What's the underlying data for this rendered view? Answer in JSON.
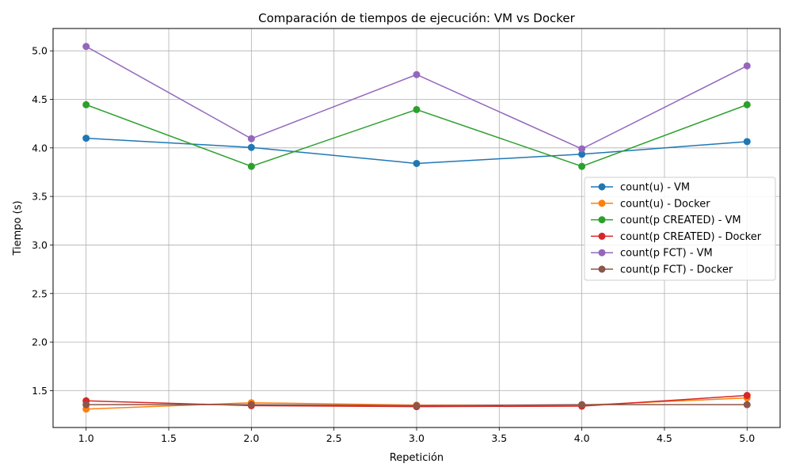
{
  "chart_data": {
    "type": "line",
    "title": "Comparación de tiempos de ejecución: VM vs Docker",
    "xlabel": "Repetición",
    "ylabel": "Tiempo (s)",
    "xlim": [
      0.8,
      5.2
    ],
    "ylim": [
      1.12,
      5.23
    ],
    "xticks": [
      "1.0",
      "1.5",
      "2.0",
      "2.5",
      "3.0",
      "3.5",
      "4.0",
      "4.5",
      "5.0"
    ],
    "yticks": [
      "1.5",
      "2.0",
      "2.5",
      "3.0",
      "3.5",
      "4.0",
      "4.5",
      "5.0"
    ],
    "grid": true,
    "legend_position": "center-right",
    "x": [
      1,
      2,
      3,
      4,
      5
    ],
    "series": [
      {
        "name": "count(u) - VM",
        "color": "#1f77b4",
        "values": [
          4.1,
          4.005,
          3.84,
          3.935,
          4.065
        ]
      },
      {
        "name": "count(u) - Docker",
        "color": "#ff7f0e",
        "values": [
          1.31,
          1.375,
          1.35,
          1.35,
          1.425
        ]
      },
      {
        "name": "count(p CREATED) - VM",
        "color": "#2ca02c",
        "values": [
          4.445,
          3.81,
          4.395,
          3.81,
          4.445
        ]
      },
      {
        "name": "count(p CREATED) - Docker",
        "color": "#d62728",
        "values": [
          1.395,
          1.345,
          1.335,
          1.34,
          1.45
        ]
      },
      {
        "name": "count(p FCT) - VM",
        "color": "#9467bd",
        "values": [
          5.045,
          4.095,
          4.755,
          3.99,
          4.845
        ]
      },
      {
        "name": "count(p FCT) - Docker",
        "color": "#8c564b",
        "values": [
          1.355,
          1.355,
          1.345,
          1.355,
          1.355
        ]
      }
    ]
  }
}
